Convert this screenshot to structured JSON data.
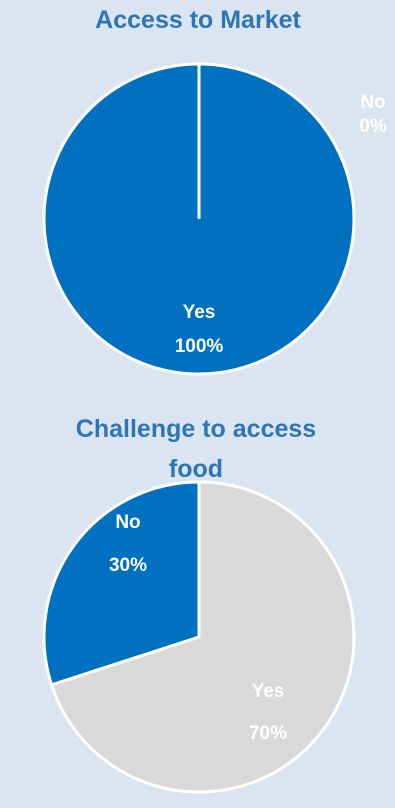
{
  "colors": {
    "background": "#dbe5f1",
    "title": "#2e75b6",
    "blue": "#0070c0",
    "gray": "#d9d9d9",
    "white": "#ffffff"
  },
  "chart_data": [
    {
      "type": "pie",
      "title": "Access to Market",
      "categories": [
        "No",
        "Yes"
      ],
      "values": [
        0,
        100
      ],
      "value_labels": [
        "0%",
        "100%"
      ],
      "colors": [
        "#0070c0",
        "#0070c0"
      ],
      "legend": "none"
    },
    {
      "type": "pie",
      "title_lines": [
        "Challenge to access",
        "food"
      ],
      "categories": [
        "No",
        "Yes"
      ],
      "values": [
        30,
        70
      ],
      "value_labels": [
        "30%",
        "70%"
      ],
      "colors": [
        "#0070c0",
        "#d9d9d9"
      ],
      "legend": "none"
    }
  ]
}
